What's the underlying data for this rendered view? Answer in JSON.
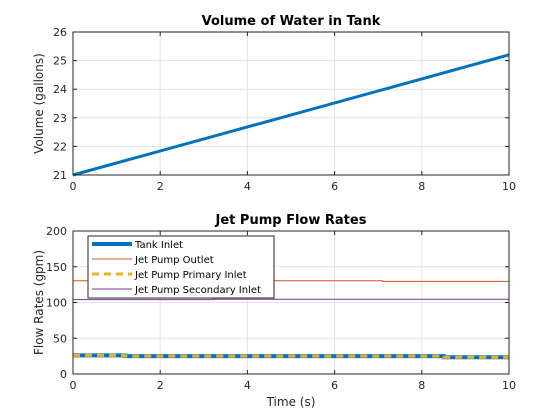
{
  "chart_data": [
    {
      "type": "line",
      "title": "Volume of Water in Tank",
      "xlabel": "",
      "ylabel": "Volume (gallons)",
      "xlim": [
        0,
        10
      ],
      "ylim": [
        21,
        26
      ],
      "xticks": [
        "0",
        "2",
        "4",
        "6",
        "8",
        "10"
      ],
      "yticks": [
        "21",
        "22",
        "23",
        "24",
        "25",
        "26"
      ],
      "grid": true,
      "series": [
        {
          "color": "#0072BD",
          "line_width": 3,
          "dash": "solid",
          "x": [
            0,
            10
          ],
          "y": [
            21.0,
            25.2
          ]
        }
      ]
    },
    {
      "type": "line",
      "title": "Jet Pump Flow Rates",
      "xlabel": "Time (s)",
      "ylabel": "Flow Rates (gpm)",
      "xlim": [
        0,
        10
      ],
      "ylim": [
        0,
        200
      ],
      "xticks": [
        "0",
        "2",
        "4",
        "6",
        "8",
        "10"
      ],
      "yticks": [
        "0",
        "50",
        "100",
        "150",
        "200"
      ],
      "grid": true,
      "legend_position": "top-left",
      "series": [
        {
          "name": "Tank Inlet",
          "color": "#0072BD",
          "line_width": 4,
          "dash": "solid",
          "x": [
            0,
            1.2,
            1.2,
            8.5,
            8.5,
            10
          ],
          "y": [
            26,
            26,
            25,
            25,
            23.5,
            23.5
          ]
        },
        {
          "name": "Jet Pump Outlet",
          "color": "#D95319",
          "line_width": 1,
          "dash": "solid",
          "x": [
            0,
            7.1,
            7.1,
            10
          ],
          "y": [
            130.5,
            130.5,
            129.5,
            129.5
          ]
        },
        {
          "name": "Jet Pump Primary Inlet",
          "color": "#EDB120",
          "line_width": 3,
          "dash": "dashed",
          "x": [
            0,
            1.2,
            1.2,
            8.5,
            8.5,
            10
          ],
          "y": [
            26,
            26,
            25,
            25,
            23.5,
            23.5
          ]
        },
        {
          "name": "Jet Pump Secondary Inlet",
          "color": "#7E2F8E",
          "line_width": 1,
          "dash": "solid",
          "x": [
            0,
            3.2,
            3.2,
            10
          ],
          "y": [
            104,
            104,
            104.5,
            104.5
          ]
        }
      ]
    }
  ]
}
